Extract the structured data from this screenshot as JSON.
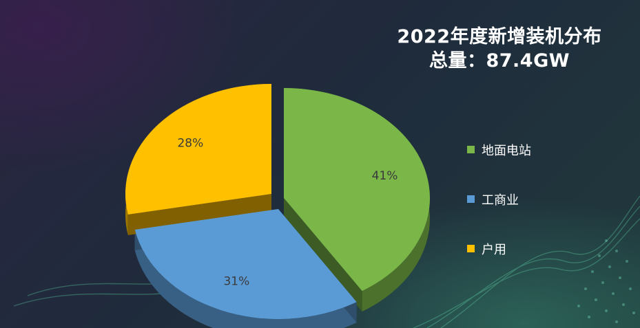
{
  "chart_data": {
    "type": "pie",
    "title": "2022年度新增装机分布",
    "subtitle": "总量：87.4GW",
    "slices": [
      {
        "label": "地面电站",
        "value": 41,
        "display": "41%",
        "color": "#7ab648"
      },
      {
        "label": "工商业",
        "value": 31,
        "display": "31%",
        "color": "#5b9bd5"
      },
      {
        "label": "户用",
        "value": 28,
        "display": "28%",
        "color": "#ffc000"
      }
    ],
    "legend_position": "right"
  }
}
